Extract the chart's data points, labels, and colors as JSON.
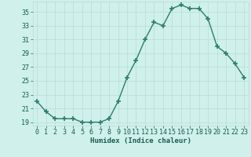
{
  "x": [
    0,
    1,
    2,
    3,
    4,
    5,
    6,
    7,
    8,
    9,
    10,
    11,
    12,
    13,
    14,
    15,
    16,
    17,
    18,
    19,
    20,
    21,
    22,
    23
  ],
  "y": [
    22,
    20.5,
    19.5,
    19.5,
    19.5,
    19,
    19,
    19,
    19.5,
    22,
    25.5,
    28,
    31,
    33.5,
    33,
    35.5,
    36,
    35.5,
    35.5,
    34,
    30,
    29,
    27.5,
    25.5
  ],
  "xlabel": "Humidex (Indice chaleur)",
  "xlim": [
    -0.5,
    23.5
  ],
  "ylim": [
    18.5,
    36.5
  ],
  "yticks": [
    19,
    21,
    23,
    25,
    27,
    29,
    31,
    33,
    35
  ],
  "xticks": [
    0,
    1,
    2,
    3,
    4,
    5,
    6,
    7,
    8,
    9,
    10,
    11,
    12,
    13,
    14,
    15,
    16,
    17,
    18,
    19,
    20,
    21,
    22,
    23
  ],
  "line_color": "#2e7d6e",
  "marker": "+",
  "marker_size": 4,
  "marker_lw": 1.2,
  "bg_color": "#cff0eb",
  "grid_color": "#b8ddd7",
  "label_color": "#1a5c50",
  "tick_color": "#1a5c50",
  "xlabel_fontsize": 6.5,
  "tick_fontsize": 6.0,
  "line_width": 1.0
}
